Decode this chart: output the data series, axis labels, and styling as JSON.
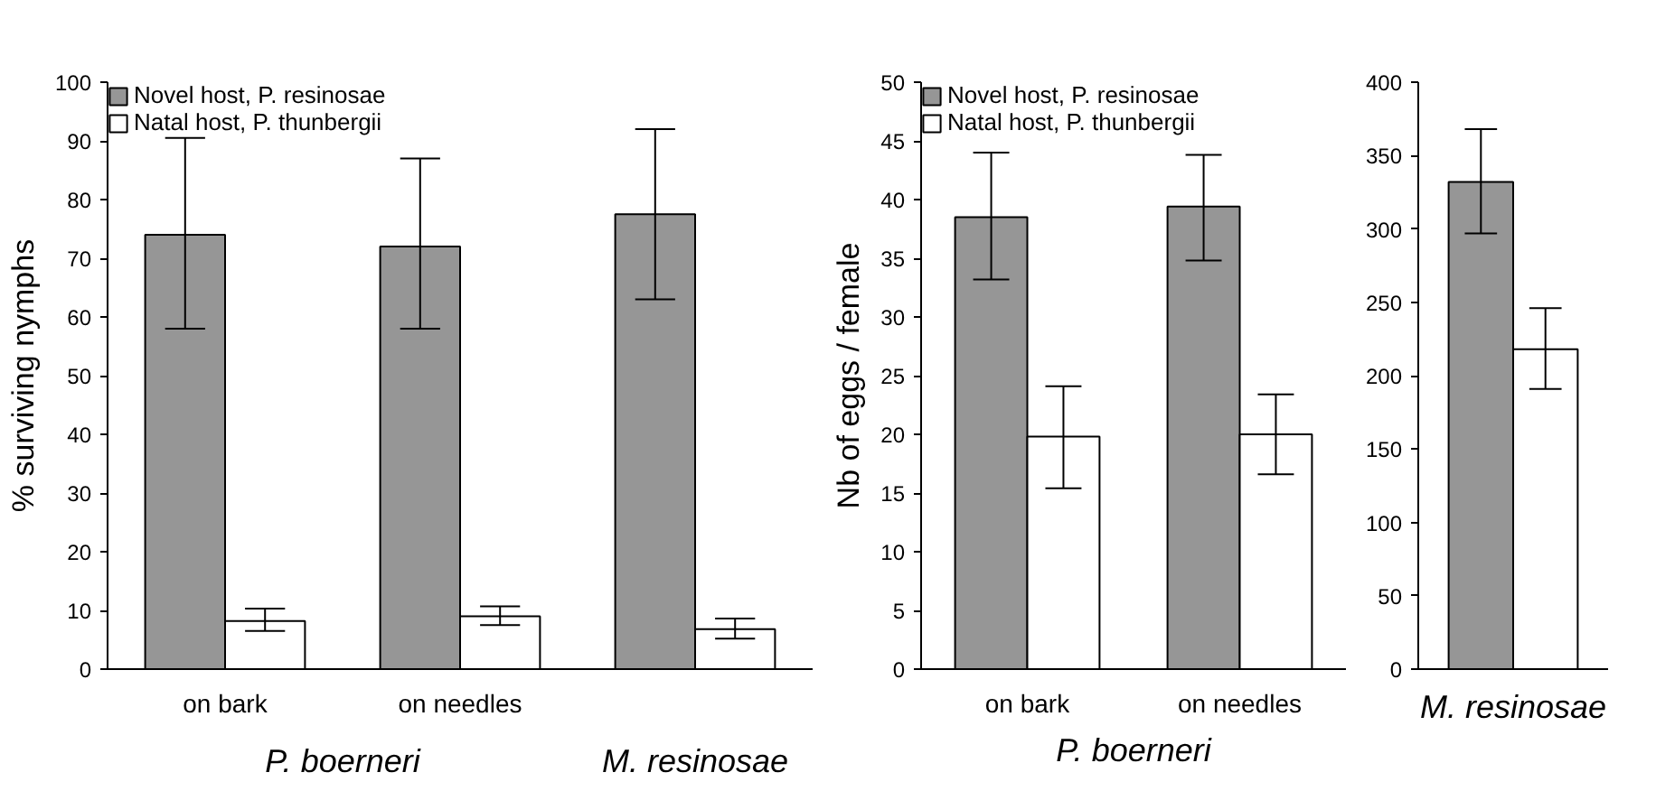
{
  "chart_data": [
    {
      "type": "bar",
      "ylabel": "% surviving nymphs",
      "categories": [
        "on bark",
        "on needles",
        null
      ],
      "annotations": [
        "P. boerneri",
        "M. resinosae"
      ],
      "ylim": [
        0,
        100
      ],
      "yticks": [
        0,
        10,
        20,
        30,
        40,
        50,
        60,
        70,
        80,
        90,
        100
      ],
      "grid": false,
      "legend": "top left",
      "series": [
        {
          "name": "Novel host, P. resinosae",
          "color": "#969696",
          "values": [
            74,
            72,
            77.5
          ],
          "errors": [
            [
              58,
              90.5
            ],
            [
              58,
              87
            ],
            [
              63,
              92
            ]
          ]
        },
        {
          "name": "Natal host, P. thunbergii",
          "color": "#ffffff",
          "values": [
            8.2,
            9,
            6.8
          ],
          "errors": [
            [
              6.5,
              10.3
            ],
            [
              7.5,
              10.7
            ],
            [
              5.2,
              8.6
            ]
          ]
        }
      ]
    },
    {
      "type": "bar",
      "ylabel": "Nb of eggs / female",
      "xlabel": "P. boerneri",
      "categories": [
        "on bark",
        "on needles"
      ],
      "ylim": [
        0,
        50
      ],
      "yticks": [
        0,
        5,
        10,
        15,
        20,
        25,
        30,
        35,
        40,
        45,
        50
      ],
      "grid": false,
      "legend": "top left",
      "series": [
        {
          "name": "Novel host, P. resinosae",
          "color": "#969696",
          "values": [
            38.5,
            39.4
          ],
          "errors": [
            [
              33.2,
              44
            ],
            [
              34.8,
              43.8
            ]
          ]
        },
        {
          "name": "Natal host, P. thunbergii",
          "color": "#ffffff",
          "values": [
            19.8,
            20
          ],
          "errors": [
            [
              15.4,
              24.1
            ],
            [
              16.6,
              23.4
            ]
          ]
        }
      ]
    },
    {
      "type": "bar",
      "xlabel": "M. resinosae",
      "categories": [
        null
      ],
      "ylim": [
        0,
        400
      ],
      "yticks": [
        0,
        50,
        100,
        150,
        200,
        250,
        300,
        350,
        400
      ],
      "grid": false,
      "series": [
        {
          "color": "#969696",
          "values": [
            332
          ],
          "errors": [
            [
              297,
              368
            ]
          ]
        },
        {
          "color": "#ffffff",
          "values": [
            218
          ],
          "errors": [
            [
              191,
              246
            ]
          ]
        }
      ]
    }
  ]
}
